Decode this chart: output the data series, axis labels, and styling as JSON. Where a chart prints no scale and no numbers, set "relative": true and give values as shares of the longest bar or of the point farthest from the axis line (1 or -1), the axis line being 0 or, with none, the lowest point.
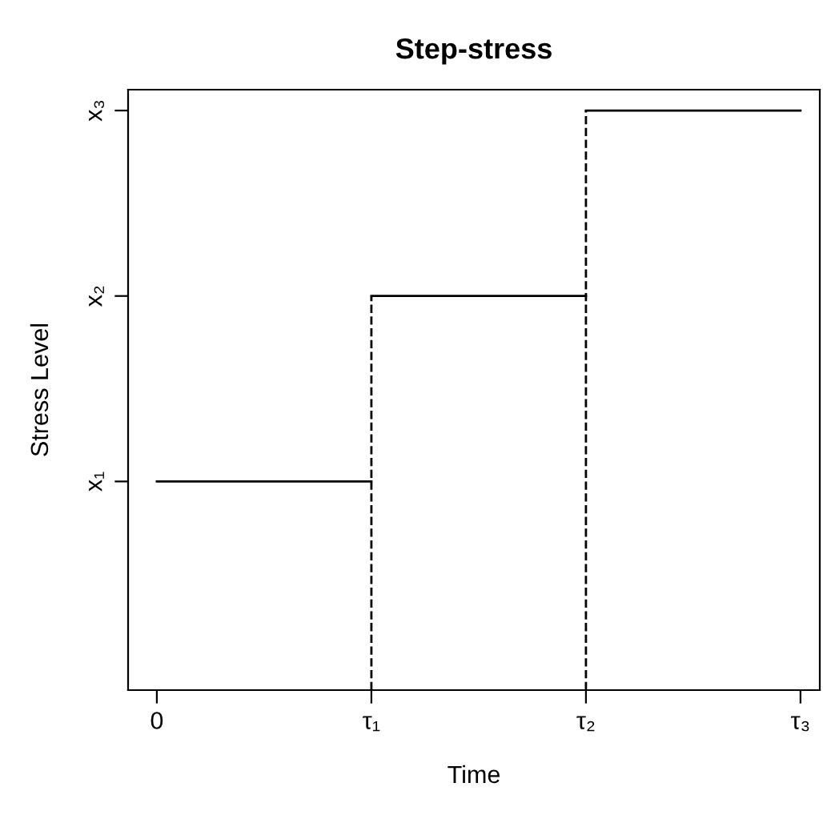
{
  "chart_data": {
    "type": "step",
    "title": "Step-stress",
    "xlabel": "Time",
    "ylabel": "Stress Level",
    "categories": [
      "0",
      "τ₁",
      "τ₂",
      "τ₃"
    ],
    "series": [
      {
        "color": "#000000",
        "values": [
          0.36,
          0.36,
          0.68,
          1
        ]
      }
    ],
    "relative": true,
    "line_style": "solid",
    "marker": "none",
    "grid": false,
    "annotations": [
      "x₁",
      "x₂",
      "x₃"
    ],
    "ref_lines": [
      {
        "axis": "x",
        "value": "τ₁",
        "color": "#000000",
        "line_style": "dashed"
      },
      {
        "axis": "x",
        "value": "τ₂",
        "color": "#000000",
        "line_style": "dashed"
      }
    ]
  }
}
